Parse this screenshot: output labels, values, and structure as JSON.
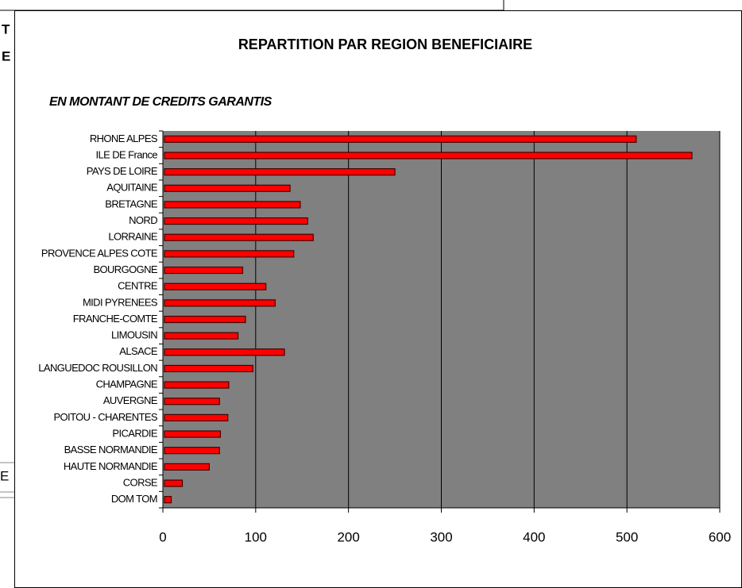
{
  "background": {
    "fragments": [
      "T",
      "E",
      "E"
    ]
  },
  "chart_data": {
    "type": "barh",
    "title": "REPARTITION PAR REGION BENEFICIAIRE",
    "subtitle": "EN MONTANT DE CREDITS GARANTIS",
    "categories": [
      "RHONE ALPES",
      "ILE DE France",
      "PAYS DE LOIRE",
      "AQUITAINE",
      "BRETAGNE",
      "NORD",
      "LORRAINE",
      "PROVENCE ALPES COTE",
      "BOURGOGNE",
      "CENTRE",
      "MIDI PYRENEES",
      "FRANCHE-COMTE",
      "LIMOUSIN",
      "ALSACE",
      "LANGUEDOC ROUSILLON",
      "CHAMPAGNE",
      "AUVERGNE",
      "POITOU - CHARENTES",
      "PICARDIE",
      "BASSE NORMANDIE",
      "HAUTE NORMANDIE",
      "CORSE",
      "DOM TOM"
    ],
    "values": [
      510,
      570,
      250,
      137,
      148,
      156,
      162,
      141,
      86,
      111,
      121,
      89,
      81,
      131,
      97,
      71,
      61,
      70,
      62,
      61,
      50,
      21,
      9
    ],
    "color": "#ff0000",
    "xlim": [
      0,
      600
    ],
    "xticks": [
      0,
      100,
      200,
      300,
      400,
      500,
      600
    ],
    "grid": true
  }
}
